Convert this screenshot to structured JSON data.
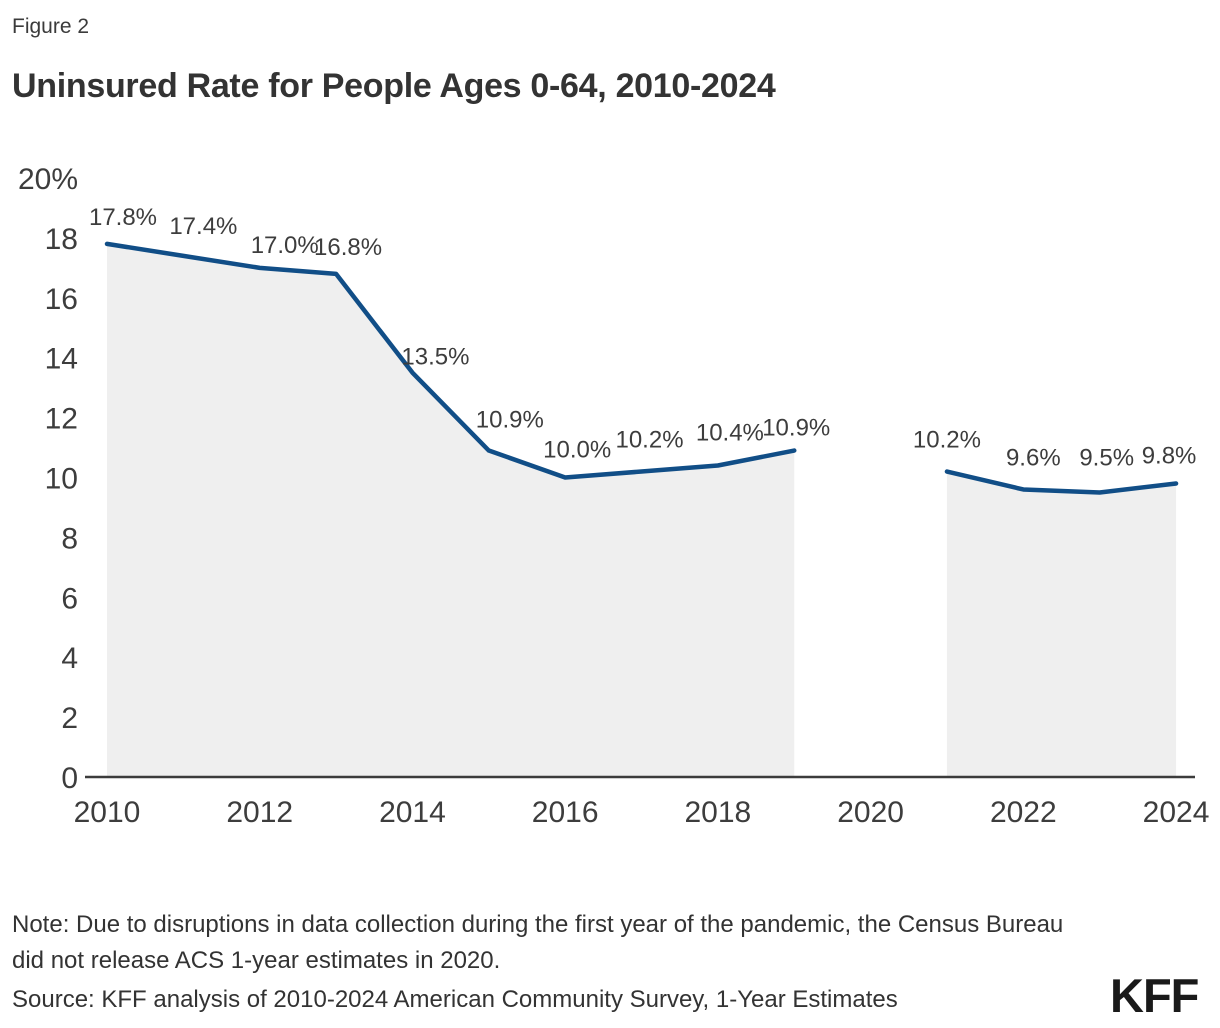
{
  "figure": {
    "label": "Figure 2",
    "title": "Uninsured Rate for People Ages 0-64, 2010-2024"
  },
  "chart_data": {
    "type": "area",
    "title": "Uninsured Rate for People Ages 0-64, 2010-2024",
    "x": [
      2010,
      2011,
      2012,
      2013,
      2014,
      2015,
      2016,
      2017,
      2018,
      2019,
      2020,
      2021,
      2022,
      2023,
      2024
    ],
    "values": [
      17.8,
      17.4,
      17.0,
      16.8,
      13.5,
      10.9,
      10.0,
      10.2,
      10.4,
      10.9,
      null,
      10.2,
      9.6,
      9.5,
      9.8
    ],
    "data_labels": [
      "17.8%",
      "17.4%",
      "17.0%",
      "16.8%",
      "13.5%",
      "10.9%",
      "10.0%",
      "10.2%",
      "10.4%",
      "10.9%",
      null,
      "10.2%",
      "9.6%",
      "9.5%",
      "9.8%"
    ],
    "x_ticks": [
      "2010",
      "2012",
      "2014",
      "2016",
      "2018",
      "2020",
      "2022",
      "2024"
    ],
    "x_tick_years": [
      2010,
      2012,
      2014,
      2016,
      2018,
      2020,
      2022,
      2024
    ],
    "y_ticks": [
      {
        "v": 0,
        "label": "0"
      },
      {
        "v": 2,
        "label": "2"
      },
      {
        "v": 4,
        "label": "4"
      },
      {
        "v": 6,
        "label": "6"
      },
      {
        "v": 8,
        "label": "8"
      },
      {
        "v": 10,
        "label": "10"
      },
      {
        "v": 12,
        "label": "12"
      },
      {
        "v": 14,
        "label": "14"
      },
      {
        "v": 16,
        "label": "16"
      },
      {
        "v": 18,
        "label": "18"
      },
      {
        "v": 20,
        "label": "20%"
      }
    ],
    "ylim": [
      0,
      20
    ],
    "grid": false,
    "legend": "none",
    "gap_note": "no data point for 2020",
    "line_color": "#114e87",
    "fill_color": "#efefef",
    "axis_color": "#3c3c3c",
    "label_color": "#3d3d3d"
  },
  "notes": {
    "note": "Note: Due to disruptions in data collection during the first year of the pandemic, the Census Bureau did not release ACS 1-year estimates in 2020.",
    "source": "Source: KFF analysis of 2010-2024 American Community Survey, 1-Year Estimates",
    "logo": "KFF"
  }
}
